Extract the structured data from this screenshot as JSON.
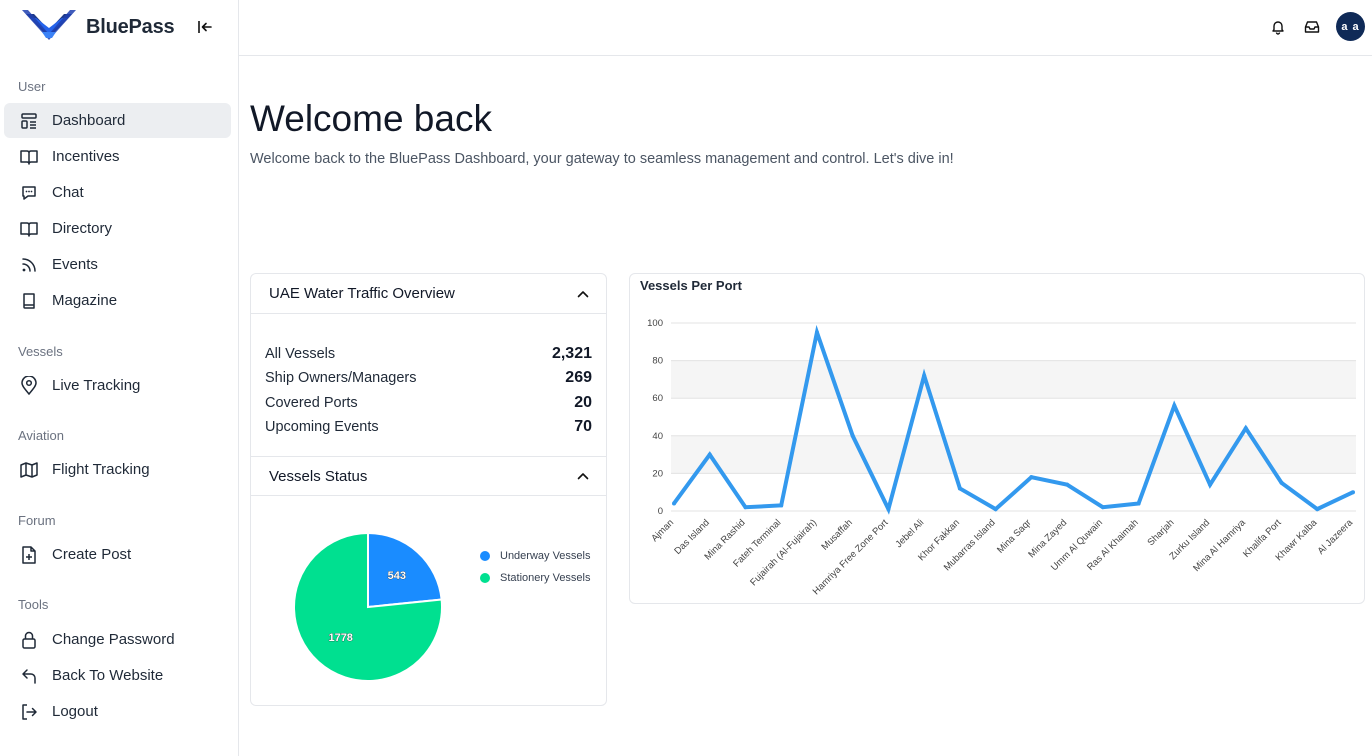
{
  "app": {
    "brand_name": "BluePass"
  },
  "sidebar": {
    "sections": [
      {
        "title": "User",
        "items": [
          {
            "label": "Dashboard",
            "icon": "dashboard-icon",
            "active": true
          },
          {
            "label": "Incentives",
            "icon": "book-open-icon"
          },
          {
            "label": "Chat",
            "icon": "chat-icon"
          },
          {
            "label": "Directory",
            "icon": "book-open-icon"
          },
          {
            "label": "Events",
            "icon": "rss-icon"
          },
          {
            "label": "Magazine",
            "icon": "book-icon"
          }
        ]
      },
      {
        "title": "Vessels",
        "items": [
          {
            "label": "Live Tracking",
            "icon": "location-pin-icon"
          }
        ]
      },
      {
        "title": "Aviation",
        "items": [
          {
            "label": "Flight Tracking",
            "icon": "map-icon"
          }
        ]
      },
      {
        "title": "Forum",
        "items": [
          {
            "label": "Create Post",
            "icon": "file-plus-icon"
          }
        ]
      },
      {
        "title": "Tools",
        "items": [
          {
            "label": "Change Password",
            "icon": "lock-icon"
          },
          {
            "label": "Back To Website",
            "icon": "back-arrow-icon"
          },
          {
            "label": "Logout",
            "icon": "logout-icon"
          }
        ]
      }
    ]
  },
  "topbar": {
    "avatar_initials": "a a"
  },
  "main": {
    "title": "Welcome back",
    "subtitle": "Welcome back to the BluePass Dashboard, your gateway to seamless management and control. Let's dive in!"
  },
  "overview": {
    "title": "UAE Water Traffic Overview",
    "stats": [
      {
        "label": "All Vessels",
        "value": "2,321"
      },
      {
        "label": "Ship Owners/Managers",
        "value": "269"
      },
      {
        "label": "Covered Ports",
        "value": "20"
      },
      {
        "label": "Upcoming Events",
        "value": "70"
      }
    ]
  },
  "status": {
    "title": "Vessels Status",
    "slices": [
      {
        "name": "Underway Vessels",
        "value": 543,
        "label": "543",
        "color": "#1a8cff"
      },
      {
        "name": "Stationery Vessels",
        "value": 1778,
        "label": "1778",
        "color": "#00e090"
      }
    ]
  },
  "chart_data": {
    "type": "line",
    "title": "Vessels Per Port",
    "x": [
      "Ajman",
      "Das Island",
      "Mina Rashid",
      "Fateh Terminal",
      "Fujairah (Al-Fujairah)",
      "Musaffah",
      "Hamriya Free Zone Port",
      "Jebel Ali",
      "Khor Fakkan",
      "Mubarras Island",
      "Mina Saqr",
      "Mina Zayed",
      "Umm Al Quwain",
      "Ras Al Khaimah",
      "Sharjah",
      "Zurku Island",
      "Mina Al Hamriya",
      "Khalifa Port",
      "Khawr Kalba",
      "Al Jazeera"
    ],
    "series": [
      {
        "values": [
          4,
          30,
          2,
          3,
          95,
          40,
          1,
          72,
          12,
          1,
          18,
          14,
          2,
          4,
          56,
          14,
          44,
          15,
          1,
          10
        ],
        "color": "#3399ee"
      }
    ],
    "yticks": [
      "0",
      "20",
      "40",
      "60",
      "80",
      "100"
    ],
    "ylim": [
      0,
      100
    ],
    "grid": true,
    "legend": "none"
  }
}
